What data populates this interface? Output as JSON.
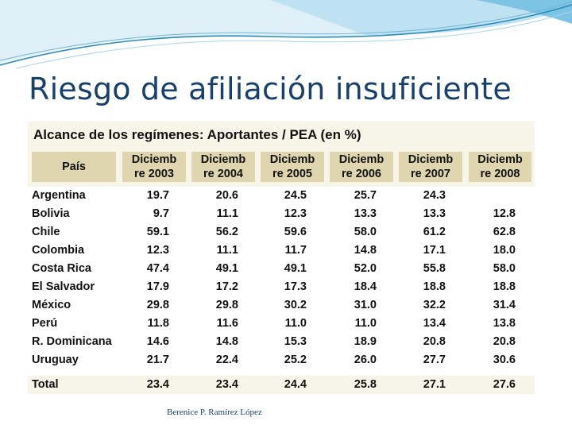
{
  "slide": {
    "title": "Riesgo de afiliación insuficiente",
    "footer": "Berenice P. Ramírez López"
  },
  "table": {
    "caption": "Alcance de los regímenes: Aportantes / PEA  (en %)",
    "headers": [
      "País",
      "Diciemb\nre 2003",
      "Diciemb\nre 2004",
      "Diciemb\nre 2005",
      "Diciemb\nre 2006",
      "Diciemb\nre 2007",
      "Diciemb\nre 2008"
    ],
    "rows": [
      {
        "country": "Argentina",
        "values": [
          "19.7",
          "20.6",
          "24.5",
          "25.7",
          "24.3",
          ""
        ]
      },
      {
        "country": "Bolivia",
        "values": [
          "9.7",
          "11.1",
          "12.3",
          "13.3",
          "13.3",
          "12.8"
        ]
      },
      {
        "country": "Chile",
        "values": [
          "59.1",
          "56.2",
          "59.6",
          "58.0",
          "61.2",
          "62.8"
        ]
      },
      {
        "country": "Colombia",
        "values": [
          "12.3",
          "11.1",
          "11.7",
          "14.8",
          "17.1",
          "18.0"
        ]
      },
      {
        "country": "Costa Rica",
        "values": [
          "47.4",
          "49.1",
          "49.1",
          "52.0",
          "55.8",
          "58.0"
        ]
      },
      {
        "country": "El Salvador",
        "values": [
          "17.9",
          "17.2",
          "17.3",
          "18.4",
          "18.8",
          "18.8"
        ]
      },
      {
        "country": "México",
        "values": [
          "29.8",
          "29.8",
          "30.2",
          "31.0",
          "32.2",
          "31.4"
        ]
      },
      {
        "country": "Perú",
        "values": [
          "11.8",
          "11.6",
          "11.0",
          "11.0",
          "13.4",
          "13.8"
        ]
      },
      {
        "country": "R. Dominicana",
        "values": [
          "14.6",
          "14.8",
          "15.3",
          "18.9",
          "20.8",
          "20.8"
        ]
      },
      {
        "country": "Uruguay",
        "values": [
          "21.7",
          "22.4",
          "25.2",
          "26.0",
          "27.7",
          "30.6"
        ]
      }
    ],
    "total": {
      "label": "Total",
      "values": [
        "23.4",
        "23.4",
        "24.4",
        "25.8",
        "27.1",
        "27.6"
      ]
    }
  },
  "colors": {
    "title": "#17406d",
    "header_fill": "#dfd6b0",
    "panel_fill": "#f7f4e8",
    "wave_dark": "#2f8cb8",
    "wave_light": "#cfe8f4"
  }
}
